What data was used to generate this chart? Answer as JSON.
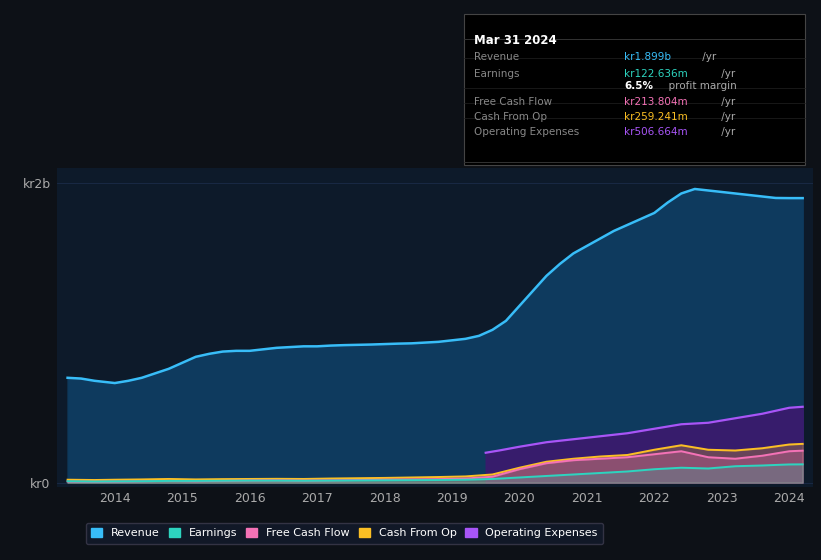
{
  "background_color": "#0d1117",
  "plot_bg_color": "#0d1a2a",
  "grid_color": "#1e3050",
  "revenue_color": "#38bdf8",
  "revenue_fill": "#0e3a5e",
  "earnings_color": "#2dd4bf",
  "fcf_color": "#f472b6",
  "cashfromop_color": "#fbbf24",
  "opex_color": "#a855f7",
  "opex_fill": "#3b1a6e",
  "legend_bg": "#111827",
  "x_ticks": [
    2014,
    2015,
    2016,
    2017,
    2018,
    2019,
    2020,
    2021,
    2022,
    2023,
    2024
  ],
  "revenue_x": [
    2013.3,
    2013.5,
    2013.7,
    2013.9,
    2014.0,
    2014.2,
    2014.4,
    2014.6,
    2014.8,
    2015.0,
    2015.2,
    2015.4,
    2015.6,
    2015.8,
    2016.0,
    2016.2,
    2016.4,
    2016.6,
    2016.8,
    2017.0,
    2017.2,
    2017.4,
    2017.6,
    2017.8,
    2018.0,
    2018.2,
    2018.4,
    2018.6,
    2018.8,
    2019.0,
    2019.2,
    2019.4,
    2019.6,
    2019.8,
    2020.0,
    2020.2,
    2020.4,
    2020.6,
    2020.8,
    2021.0,
    2021.2,
    2021.4,
    2021.6,
    2021.8,
    2022.0,
    2022.2,
    2022.4,
    2022.6,
    2022.8,
    2023.0,
    2023.2,
    2023.4,
    2023.6,
    2023.8,
    2024.0,
    2024.2
  ],
  "revenue_y": [
    700,
    695,
    680,
    670,
    665,
    680,
    700,
    730,
    760,
    800,
    840,
    860,
    875,
    880,
    880,
    890,
    900,
    905,
    910,
    910,
    915,
    918,
    920,
    922,
    925,
    928,
    930,
    935,
    940,
    950,
    960,
    980,
    1020,
    1080,
    1180,
    1280,
    1380,
    1460,
    1530,
    1580,
    1630,
    1680,
    1720,
    1760,
    1800,
    1870,
    1930,
    1960,
    1950,
    1940,
    1930,
    1920,
    1910,
    1900,
    1899,
    1899
  ],
  "small_x": [
    2013.3,
    2013.7,
    2014.0,
    2014.4,
    2014.8,
    2015.2,
    2015.6,
    2016.0,
    2016.4,
    2016.8,
    2017.2,
    2017.6,
    2018.0,
    2018.4,
    2018.8,
    2019.2,
    2019.6,
    2020.0,
    2020.4,
    2020.8,
    2021.2,
    2021.6,
    2022.0,
    2022.4,
    2022.8,
    2023.2,
    2023.6,
    2024.0,
    2024.2
  ],
  "earnings_y": [
    10,
    8,
    9,
    10,
    12,
    12,
    13,
    14,
    14,
    13,
    14,
    15,
    16,
    17,
    18,
    20,
    25,
    35,
    45,
    55,
    65,
    75,
    90,
    100,
    95,
    110,
    115,
    122,
    122.636
  ],
  "fcf_y": [
    8,
    7,
    8,
    10,
    12,
    10,
    12,
    15,
    16,
    14,
    16,
    18,
    20,
    22,
    24,
    28,
    40,
    90,
    130,
    150,
    160,
    170,
    190,
    210,
    170,
    160,
    180,
    210,
    213.804
  ],
  "cashfromop_y": [
    20,
    18,
    20,
    22,
    25,
    22,
    24,
    25,
    26,
    25,
    28,
    30,
    32,
    35,
    38,
    42,
    55,
    100,
    140,
    160,
    175,
    185,
    220,
    250,
    220,
    215,
    230,
    255,
    259.241
  ],
  "opex_x": [
    2019.5,
    2019.7,
    2020.0,
    2020.4,
    2020.8,
    2021.2,
    2021.6,
    2022.0,
    2022.4,
    2022.8,
    2023.2,
    2023.6,
    2024.0,
    2024.2
  ],
  "opex_y": [
    200,
    215,
    240,
    270,
    290,
    310,
    330,
    360,
    390,
    400,
    430,
    460,
    500,
    506.664
  ],
  "tooltip": {
    "title": "Mar 31 2024",
    "rows": [
      {
        "label": "Revenue",
        "value": "kr1.899b",
        "unit": "/yr",
        "color": "#38bdf8"
      },
      {
        "label": "Earnings",
        "value": "kr122.636m",
        "unit": "/yr",
        "color": "#2dd4bf"
      },
      {
        "label": "",
        "value": "6.5%",
        "unit": " profit margin",
        "color": "#ffffff",
        "bold": true
      },
      {
        "label": "Free Cash Flow",
        "value": "kr213.804m",
        "unit": "/yr",
        "color": "#f472b6"
      },
      {
        "label": "Cash From Op",
        "value": "kr259.241m",
        "unit": "/yr",
        "color": "#fbbf24"
      },
      {
        "label": "Operating Expenses",
        "value": "kr506.664m",
        "unit": "/yr",
        "color": "#a855f7"
      }
    ]
  },
  "legend_items": [
    {
      "label": "Revenue",
      "color": "#38bdf8"
    },
    {
      "label": "Earnings",
      "color": "#2dd4bf"
    },
    {
      "label": "Free Cash Flow",
      "color": "#f472b6"
    },
    {
      "label": "Cash From Op",
      "color": "#fbbf24"
    },
    {
      "label": "Operating Expenses",
      "color": "#a855f7"
    }
  ]
}
